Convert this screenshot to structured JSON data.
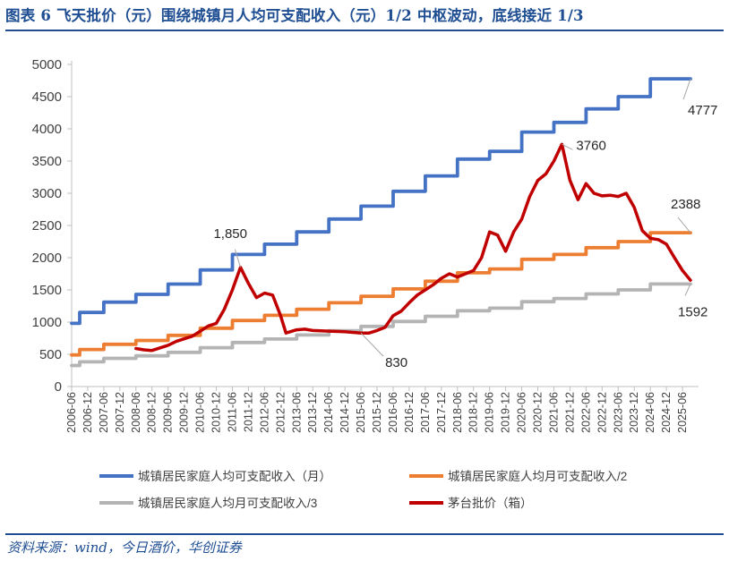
{
  "title": "图表 6   飞天批价（元）围绕城镇月人均可支配收入（元）1/2 中枢波动，底线接近 1/3",
  "source": "资料来源：wind，今日酒价，华创证券",
  "chart_data": {
    "type": "line",
    "title": "飞天批价（元）围绕城镇月人均可支配收入（元）1/2 中枢波动，底线接近 1/3",
    "ylim": [
      0,
      5000
    ],
    "y_ticks": [
      "0",
      "500",
      "1000",
      "1500",
      "2000",
      "2500",
      "3000",
      "3500",
      "4000",
      "4500",
      "5000"
    ],
    "x_range": [
      "2006-06",
      "2025-12"
    ],
    "x_ticks": [
      "2006-06",
      "2006-12",
      "2007-06",
      "2007-12",
      "2008-06",
      "2008-12",
      "2009-06",
      "2009-12",
      "2010-06",
      "2010-12",
      "2011-06",
      "2011-12",
      "2012-06",
      "2012-12",
      "2013-06",
      "2013-12",
      "2014-06",
      "2014-12",
      "2015-06",
      "2015-12",
      "2016-06",
      "2016-12",
      "2017-06",
      "2017-12",
      "2018-06",
      "2018-12",
      "2019-06",
      "2019-12",
      "2020-06",
      "2020-12",
      "2021-06",
      "2021-12",
      "2022-06",
      "2022-12",
      "2023-06",
      "2023-12",
      "2024-06",
      "2024-12",
      "2025-06"
    ],
    "legend_position": "bottom",
    "series": [
      {
        "name": "城镇居民家庭人均可支配收入（月）",
        "color": "#4472c4",
        "step": true,
        "points": [
          [
            "2006-06",
            980
          ],
          [
            "2006-09",
            1150
          ],
          [
            "2007-06",
            1310
          ],
          [
            "2008-06",
            1430
          ],
          [
            "2009-06",
            1590
          ],
          [
            "2010-06",
            1810
          ],
          [
            "2011-06",
            2050
          ],
          [
            "2012-06",
            2210
          ],
          [
            "2013-06",
            2400
          ],
          [
            "2014-06",
            2600
          ],
          [
            "2015-06",
            2800
          ],
          [
            "2016-06",
            3030
          ],
          [
            "2017-06",
            3270
          ],
          [
            "2018-06",
            3530
          ],
          [
            "2019-06",
            3650
          ],
          [
            "2020-06",
            3950
          ],
          [
            "2021-06",
            4100
          ],
          [
            "2022-06",
            4310
          ],
          [
            "2023-06",
            4500
          ],
          [
            "2024-06",
            4777
          ],
          [
            "2025-09",
            4777
          ]
        ]
      },
      {
        "name": "城镇居民家庭人均月可支配收入/2",
        "color": "#ed7d31",
        "step": true,
        "points": [
          [
            "2006-06",
            490
          ],
          [
            "2006-09",
            575
          ],
          [
            "2007-06",
            655
          ],
          [
            "2008-06",
            715
          ],
          [
            "2009-06",
            795
          ],
          [
            "2010-06",
            905
          ],
          [
            "2011-06",
            1025
          ],
          [
            "2012-06",
            1105
          ],
          [
            "2013-06",
            1200
          ],
          [
            "2014-06",
            1300
          ],
          [
            "2015-06",
            1400
          ],
          [
            "2016-06",
            1515
          ],
          [
            "2017-06",
            1635
          ],
          [
            "2018-06",
            1765
          ],
          [
            "2019-06",
            1825
          ],
          [
            "2020-06",
            1975
          ],
          [
            "2021-06",
            2050
          ],
          [
            "2022-06",
            2155
          ],
          [
            "2023-06",
            2250
          ],
          [
            "2024-06",
            2388
          ],
          [
            "2025-09",
            2388
          ]
        ]
      },
      {
        "name": "城镇居民家庭人均月可支配收入/3",
        "color": "#b4b4b4",
        "step": true,
        "points": [
          [
            "2006-06",
            327
          ],
          [
            "2006-09",
            383
          ],
          [
            "2007-06",
            437
          ],
          [
            "2008-06",
            477
          ],
          [
            "2009-06",
            530
          ],
          [
            "2010-06",
            603
          ],
          [
            "2011-06",
            683
          ],
          [
            "2012-06",
            737
          ],
          [
            "2013-06",
            800
          ],
          [
            "2014-06",
            867
          ],
          [
            "2015-06",
            933
          ],
          [
            "2016-06",
            1010
          ],
          [
            "2017-06",
            1090
          ],
          [
            "2018-06",
            1177
          ],
          [
            "2019-06",
            1217
          ],
          [
            "2020-06",
            1317
          ],
          [
            "2021-06",
            1367
          ],
          [
            "2022-06",
            1437
          ],
          [
            "2023-06",
            1500
          ],
          [
            "2024-06",
            1592
          ],
          [
            "2025-09",
            1592
          ]
        ]
      },
      {
        "name": "茅台批价（箱）",
        "color": "#c00000",
        "step": false,
        "points": [
          [
            "2008-06",
            590
          ],
          [
            "2008-09",
            570
          ],
          [
            "2008-12",
            560
          ],
          [
            "2009-03",
            600
          ],
          [
            "2009-06",
            640
          ],
          [
            "2009-09",
            700
          ],
          [
            "2009-12",
            740
          ],
          [
            "2010-03",
            780
          ],
          [
            "2010-06",
            860
          ],
          [
            "2010-09",
            940
          ],
          [
            "2010-12",
            980
          ],
          [
            "2011-03",
            1200
          ],
          [
            "2011-06",
            1500
          ],
          [
            "2011-09",
            1850
          ],
          [
            "2011-12",
            1600
          ],
          [
            "2012-03",
            1380
          ],
          [
            "2012-06",
            1450
          ],
          [
            "2012-09",
            1420
          ],
          [
            "2012-12",
            1100
          ],
          [
            "2013-02",
            830
          ],
          [
            "2013-06",
            880
          ],
          [
            "2013-09",
            890
          ],
          [
            "2013-12",
            870
          ],
          [
            "2014-06",
            860
          ],
          [
            "2014-12",
            850
          ],
          [
            "2015-06",
            830
          ],
          [
            "2015-09",
            830
          ],
          [
            "2015-12",
            870
          ],
          [
            "2016-03",
            920
          ],
          [
            "2016-06",
            1100
          ],
          [
            "2016-09",
            1170
          ],
          [
            "2016-12",
            1300
          ],
          [
            "2017-03",
            1420
          ],
          [
            "2017-06",
            1500
          ],
          [
            "2017-09",
            1580
          ],
          [
            "2017-12",
            1680
          ],
          [
            "2018-03",
            1750
          ],
          [
            "2018-06",
            1700
          ],
          [
            "2018-12",
            1800
          ],
          [
            "2019-03",
            2000
          ],
          [
            "2019-06",
            2400
          ],
          [
            "2019-09",
            2350
          ],
          [
            "2019-12",
            2100
          ],
          [
            "2020-03",
            2400
          ],
          [
            "2020-06",
            2600
          ],
          [
            "2020-09",
            2950
          ],
          [
            "2020-12",
            3200
          ],
          [
            "2021-03",
            3300
          ],
          [
            "2021-06",
            3500
          ],
          [
            "2021-09",
            3760
          ],
          [
            "2021-12",
            3200
          ],
          [
            "2022-03",
            2900
          ],
          [
            "2022-06",
            3150
          ],
          [
            "2022-09",
            3000
          ],
          [
            "2022-12",
            2960
          ],
          [
            "2023-03",
            2970
          ],
          [
            "2023-06",
            2950
          ],
          [
            "2023-09",
            3000
          ],
          [
            "2023-12",
            2780
          ],
          [
            "2024-03",
            2420
          ],
          [
            "2024-06",
            2300
          ],
          [
            "2024-09",
            2280
          ],
          [
            "2024-12",
            2210
          ],
          [
            "2025-03",
            2000
          ],
          [
            "2025-06",
            1800
          ],
          [
            "2025-09",
            1650
          ]
        ]
      }
    ],
    "annotations": [
      {
        "text": "4777",
        "series": 0,
        "at": "2025-09",
        "value": 4777
      },
      {
        "text": "2388",
        "series": 1,
        "at": "2025-09",
        "value": 2388
      },
      {
        "text": "1592",
        "series": 2,
        "at": "2025-09",
        "value": 1592
      },
      {
        "text": "1,850",
        "series": 3,
        "at": "2011-09",
        "value": 1850
      },
      {
        "text": "3760",
        "series": 3,
        "at": "2021-09",
        "value": 3760
      },
      {
        "text": "830",
        "series": 3,
        "at": "2015-06",
        "value": 830
      }
    ]
  }
}
